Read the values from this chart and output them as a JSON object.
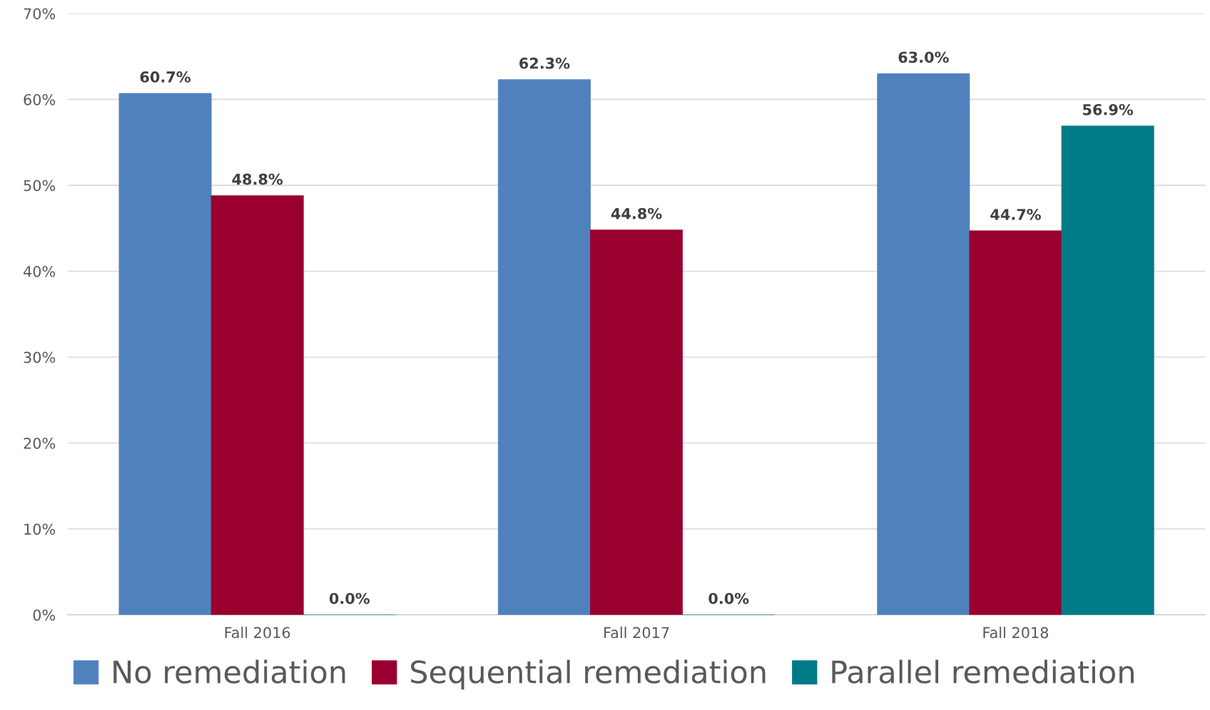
{
  "chart_data": {
    "type": "bar",
    "categories": [
      "Fall 2016",
      "Fall 2017",
      "Fall 2018"
    ],
    "series": [
      {
        "name": "No remediation",
        "color": "#4f81bd",
        "values": [
          60.7,
          62.3,
          63.0
        ],
        "value_labels": [
          "60.7%",
          "62.3%",
          "63.0%"
        ]
      },
      {
        "name": "Sequential remediation",
        "color": "#990030",
        "values": [
          48.8,
          44.8,
          44.7
        ],
        "value_labels": [
          "48.8%",
          "44.8%",
          "44.7%"
        ]
      },
      {
        "name": "Parallel remediation",
        "color": "#007a87",
        "values": [
          0.0,
          0.0,
          56.9
        ],
        "value_labels": [
          "0.0%",
          "0.0%",
          "56.9%"
        ]
      }
    ],
    "ylim": [
      0,
      70
    ],
    "yticks": [
      {
        "value": 0,
        "label": "0%"
      },
      {
        "value": 10,
        "label": "10%"
      },
      {
        "value": 20,
        "label": "20%"
      },
      {
        "value": 30,
        "label": "30%"
      },
      {
        "value": 40,
        "label": "40%"
      },
      {
        "value": 50,
        "label": "50%"
      },
      {
        "value": 60,
        "label": "60%"
      },
      {
        "value": 70,
        "label": "70%"
      }
    ],
    "grid": "y",
    "legend": "bottom"
  }
}
